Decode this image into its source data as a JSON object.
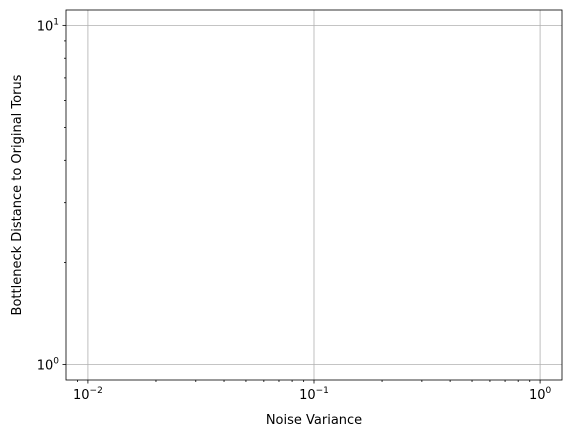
{
  "chart_data": {
    "type": "line",
    "title": "",
    "xlabel": "Noise Variance",
    "ylabel": "Bottleneck Distance to Original Torus",
    "xscale": "log",
    "yscale": "log",
    "xlim": [
      0.008,
      1.25
    ],
    "ylim": [
      0.9,
      11.1
    ],
    "grid": true,
    "series": [],
    "x_ticks": [
      {
        "value": 0.01,
        "base": "10",
        "exp": "−2"
      },
      {
        "value": 0.1,
        "base": "10",
        "exp": "−1"
      },
      {
        "value": 1,
        "base": "10",
        "exp": "0"
      }
    ],
    "y_ticks": [
      {
        "value": 1,
        "base": "10",
        "exp": "0"
      },
      {
        "value": 10,
        "base": "10",
        "exp": "1"
      }
    ]
  }
}
